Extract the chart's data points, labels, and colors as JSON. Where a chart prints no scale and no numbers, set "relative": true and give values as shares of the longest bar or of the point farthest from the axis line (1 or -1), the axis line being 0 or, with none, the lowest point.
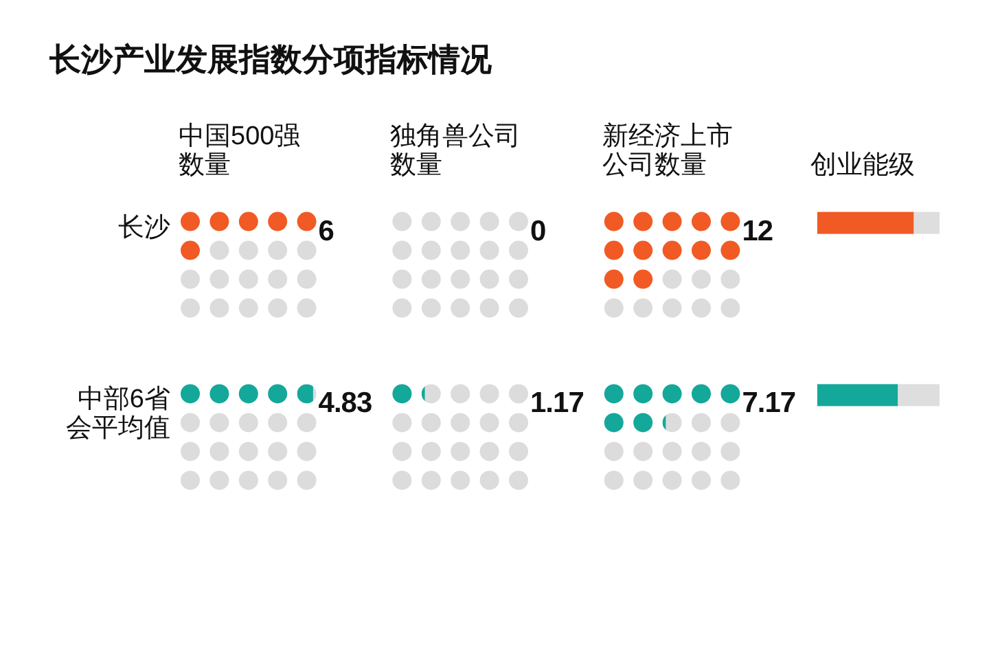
{
  "chart_data": [
    {
      "type": "other",
      "title": "长沙产业发展指数分项指标情况",
      "categories": [
        "中国500强数量",
        "独角兽公司数量",
        "新经济上市公司数量"
      ],
      "series": [
        {
          "name": "长沙",
          "color": "#f15a24",
          "values": [
            6,
            0,
            12
          ]
        },
        {
          "name": "中部6省会平均值",
          "color": "#13a89a",
          "values": [
            4.83,
            1.17,
            7.17
          ]
        }
      ],
      "data_labels": true
    },
    {
      "type": "bar",
      "orientation": "horizontal",
      "stacked": true,
      "relative": true,
      "title": "创业能级",
      "categories": [
        null,
        null
      ],
      "series": [
        {
          "colors": [
            "#f15a24",
            "#13a89a"
          ],
          "values": [
            0.79,
            0.66
          ]
        },
        {
          "color": "#dedede",
          "values": [
            0.21,
            0.34
          ]
        }
      ]
    }
  ]
}
